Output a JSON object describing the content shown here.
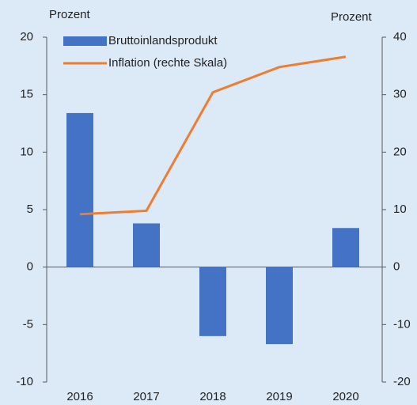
{
  "chart_data": {
    "type": "bar",
    "ylabel": "Prozent",
    "y2label": "Prozent",
    "categories": [
      "2016",
      "2017",
      "2018",
      "2019",
      "2020"
    ],
    "series": [
      {
        "name": "Bruttoinlandsprodukt",
        "type": "bar",
        "color": "#4472c4",
        "values": [
          13.4,
          3.8,
          -6.0,
          -6.7,
          3.4
        ]
      },
      {
        "name": "Inflation (rechte Skala)",
        "type": "line",
        "axis": "y2",
        "color": "#ed7d31",
        "values": [
          9.2,
          9.8,
          30.4,
          34.8,
          36.6
        ]
      }
    ],
    "ylim": [
      -10,
      20
    ],
    "yticks": [
      -10,
      -5,
      0,
      5,
      10,
      15,
      20
    ],
    "y2lim": [
      -20,
      40
    ],
    "y2ticks": [
      -20,
      -10,
      0,
      10,
      20,
      30,
      40
    ],
    "legend": "upper left"
  }
}
